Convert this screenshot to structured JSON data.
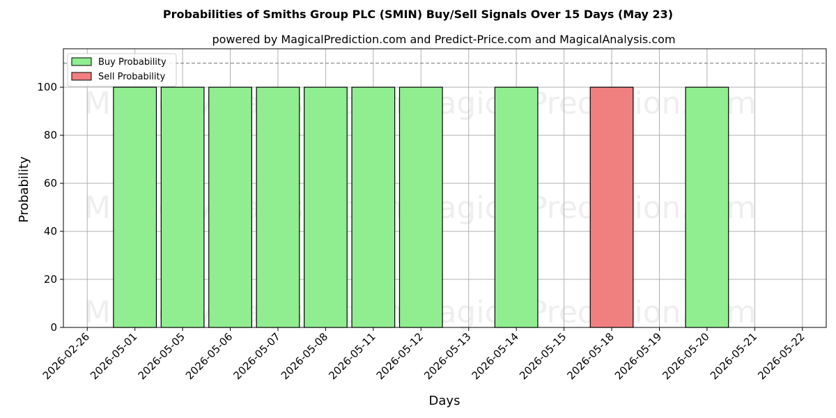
{
  "chart_data": {
    "type": "bar",
    "title": "Probabilities of Smiths Group PLC (SMIN) Buy/Sell Signals Over 15 Days (May 23)",
    "subtitle": "powered by MagicalPrediction.com and Predict-Price.com and MagicalAnalysis.com",
    "xlabel": "Days",
    "ylabel": "Probability",
    "ylim": [
      0,
      116
    ],
    "yticks": [
      0,
      20,
      40,
      60,
      80,
      100
    ],
    "threshold": 110,
    "grid": true,
    "legend_position": "top-left",
    "categories": [
      "2026-02-26",
      "2026-05-01",
      "2026-05-05",
      "2026-05-06",
      "2026-05-07",
      "2026-05-08",
      "2026-05-11",
      "2026-05-12",
      "2026-05-13",
      "2026-05-14",
      "2026-05-15",
      "2026-05-18",
      "2026-05-19",
      "2026-05-20",
      "2026-05-21",
      "2026-05-22"
    ],
    "series": [
      {
        "name": "Buy Probability",
        "color": "#90ee90",
        "values": [
          0,
          100,
          100,
          100,
          100,
          100,
          100,
          100,
          0,
          100,
          0,
          0,
          0,
          100,
          0,
          0
        ]
      },
      {
        "name": "Sell Probability",
        "color": "#f08080",
        "values": [
          0,
          0,
          0,
          0,
          0,
          0,
          0,
          0,
          0,
          0,
          0,
          100,
          0,
          0,
          0,
          0
        ]
      }
    ],
    "watermarks": [
      "MagicalAnalysis.com",
      "MagicalPrediction.com"
    ]
  }
}
